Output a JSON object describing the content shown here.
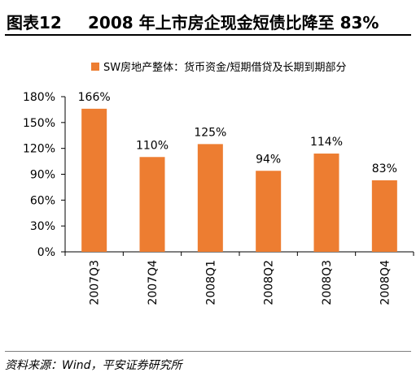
{
  "figure": {
    "label": "图表12",
    "title": "2008 年上市房企现金短债比降至 83%",
    "source": "资料来源：Wind，平安证券研究所"
  },
  "colors": {
    "bar": "#ED7D31",
    "axis": "#000000",
    "rule": "#7F7F7F"
  },
  "chart_data": {
    "type": "bar",
    "categories": [
      "2007Q3",
      "2007Q4",
      "2008Q1",
      "2008Q2",
      "2008Q3",
      "2008Q4"
    ],
    "series": [
      {
        "name": "SW房地产整体：货币资金/短期借贷及长期到期部分",
        "values": [
          166,
          110,
          125,
          94,
          114,
          83
        ],
        "data_labels": [
          "166%",
          "110%",
          "125%",
          "94%",
          "114%",
          "83%"
        ]
      }
    ],
    "ylim": [
      0,
      180
    ],
    "yticks": [
      0,
      30,
      60,
      90,
      120,
      150,
      180
    ],
    "ytick_labels": [
      "0%",
      "30%",
      "60%",
      "90%",
      "120%",
      "150%",
      "180%"
    ],
    "legend_position": "top",
    "grid": false,
    "xlabel": "",
    "ylabel": ""
  }
}
